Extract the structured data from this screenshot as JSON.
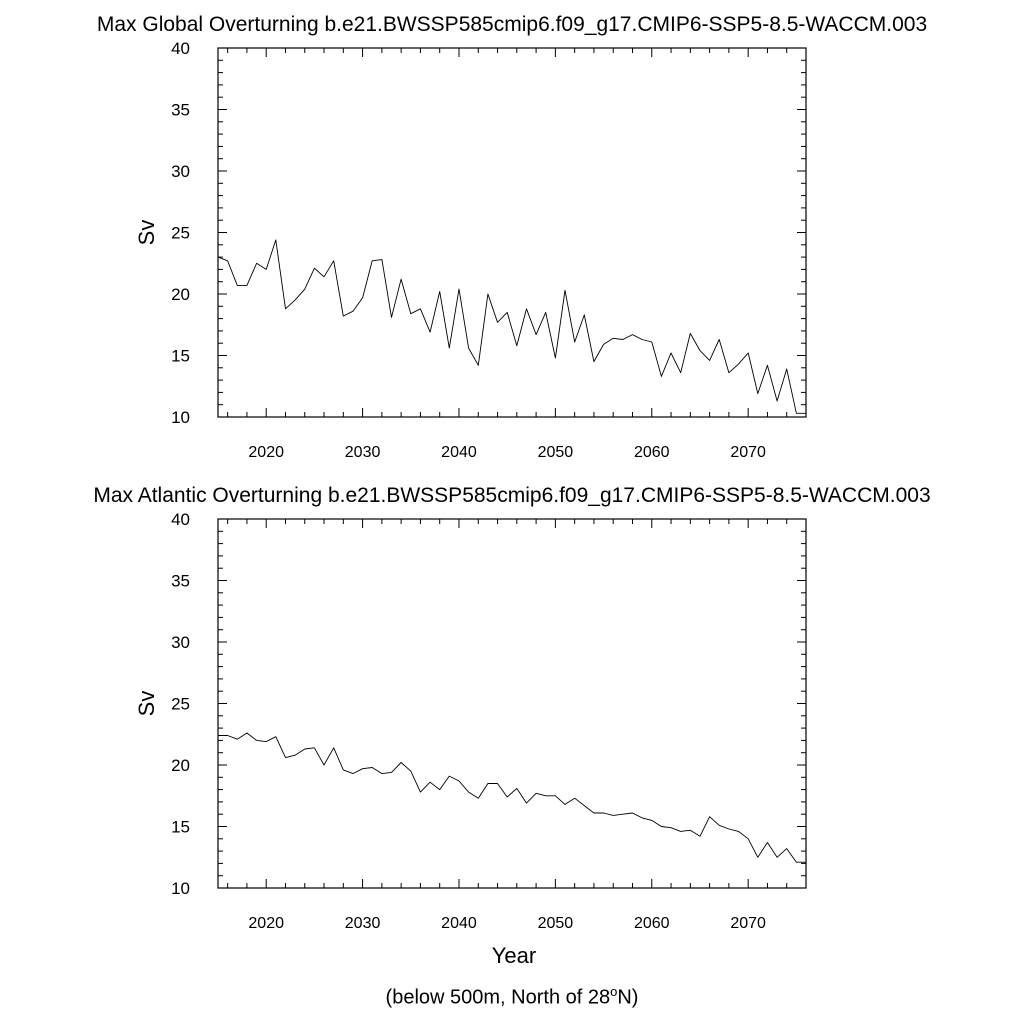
{
  "chart_data": [
    {
      "type": "line",
      "title": "Max Global Overturning b.e21.BWSSP585cmip6.f09_g17.CMIP6-SSP5-8.5-WACCM.003",
      "ylabel": "Sv",
      "xlabel": "",
      "xlim": [
        2015,
        2076
      ],
      "ylim": [
        10,
        40
      ],
      "xticks": [
        2020,
        2030,
        2040,
        2050,
        2060,
        2070
      ],
      "yticks": [
        10,
        15,
        20,
        25,
        30,
        35,
        40
      ],
      "grid": false,
      "x": [
        2015,
        2016,
        2017,
        2018,
        2019,
        2020,
        2021,
        2022,
        2023,
        2024,
        2025,
        2026,
        2027,
        2028,
        2029,
        2030,
        2031,
        2032,
        2033,
        2034,
        2035,
        2036,
        2037,
        2038,
        2039,
        2040,
        2041,
        2042,
        2043,
        2044,
        2045,
        2046,
        2047,
        2048,
        2049,
        2050,
        2051,
        2052,
        2053,
        2054,
        2055,
        2056,
        2057,
        2058,
        2059,
        2060,
        2061,
        2062,
        2063,
        2064,
        2065,
        2066,
        2067,
        2068,
        2069,
        2070,
        2071,
        2072,
        2073,
        2074,
        2075,
        2076
      ],
      "values": [
        23.0,
        22.7,
        20.7,
        20.7,
        22.5,
        22.0,
        24.4,
        18.8,
        19.5,
        20.4,
        22.1,
        21.4,
        22.7,
        18.2,
        18.6,
        19.7,
        22.7,
        22.8,
        18.1,
        21.2,
        18.4,
        18.8,
        16.9,
        20.2,
        15.6,
        20.4,
        15.6,
        14.2,
        20.0,
        17.7,
        18.5,
        15.8,
        18.8,
        16.7,
        18.5,
        14.8,
        20.3,
        16.1,
        18.3,
        14.5,
        15.9,
        16.4,
        16.3,
        16.7,
        16.3,
        16.1,
        13.3,
        15.2,
        13.6,
        16.8,
        15.4,
        14.6,
        16.3,
        13.6,
        14.3,
        15.2,
        11.9,
        14.2,
        11.3,
        13.9,
        10.3,
        10.3
      ]
    },
    {
      "type": "line",
      "title": "Max Atlantic Overturning b.e21.BWSSP585cmip6.f09_g17.CMIP6-SSP5-8.5-WACCM.003",
      "ylabel": "Sv",
      "xlabel": "Year",
      "xlim": [
        2015,
        2076
      ],
      "ylim": [
        10,
        40
      ],
      "xticks": [
        2020,
        2030,
        2040,
        2050,
        2060,
        2070
      ],
      "yticks": [
        10,
        15,
        20,
        25,
        30,
        35,
        40
      ],
      "grid": false,
      "x": [
        2015,
        2016,
        2017,
        2018,
        2019,
        2020,
        2021,
        2022,
        2023,
        2024,
        2025,
        2026,
        2027,
        2028,
        2029,
        2030,
        2031,
        2032,
        2033,
        2034,
        2035,
        2036,
        2037,
        2038,
        2039,
        2040,
        2041,
        2042,
        2043,
        2044,
        2045,
        2046,
        2047,
        2048,
        2049,
        2050,
        2051,
        2052,
        2053,
        2054,
        2055,
        2056,
        2057,
        2058,
        2059,
        2060,
        2061,
        2062,
        2063,
        2064,
        2065,
        2066,
        2067,
        2068,
        2069,
        2070,
        2071,
        2072,
        2073,
        2074,
        2075,
        2076
      ],
      "values": [
        22.4,
        22.4,
        22.1,
        22.6,
        22.0,
        21.9,
        22.3,
        20.6,
        20.8,
        21.3,
        21.4,
        20.0,
        21.4,
        19.6,
        19.3,
        19.7,
        19.8,
        19.3,
        19.4,
        20.2,
        19.5,
        17.8,
        18.6,
        18.0,
        19.1,
        18.7,
        17.8,
        17.3,
        18.5,
        18.5,
        17.4,
        18.1,
        16.9,
        17.7,
        17.5,
        17.5,
        16.8,
        17.3,
        16.7,
        16.1,
        16.1,
        15.9,
        16.0,
        16.1,
        15.7,
        15.5,
        15.0,
        14.9,
        14.6,
        14.7,
        14.2,
        15.8,
        15.1,
        14.8,
        14.6,
        14.0,
        12.5,
        13.7,
        12.5,
        13.2,
        12.1,
        12.1
      ]
    }
  ],
  "footer": {
    "caption_prefix": "(below 500m, North of 28",
    "caption_sup": "o",
    "caption_suffix": "N)"
  }
}
